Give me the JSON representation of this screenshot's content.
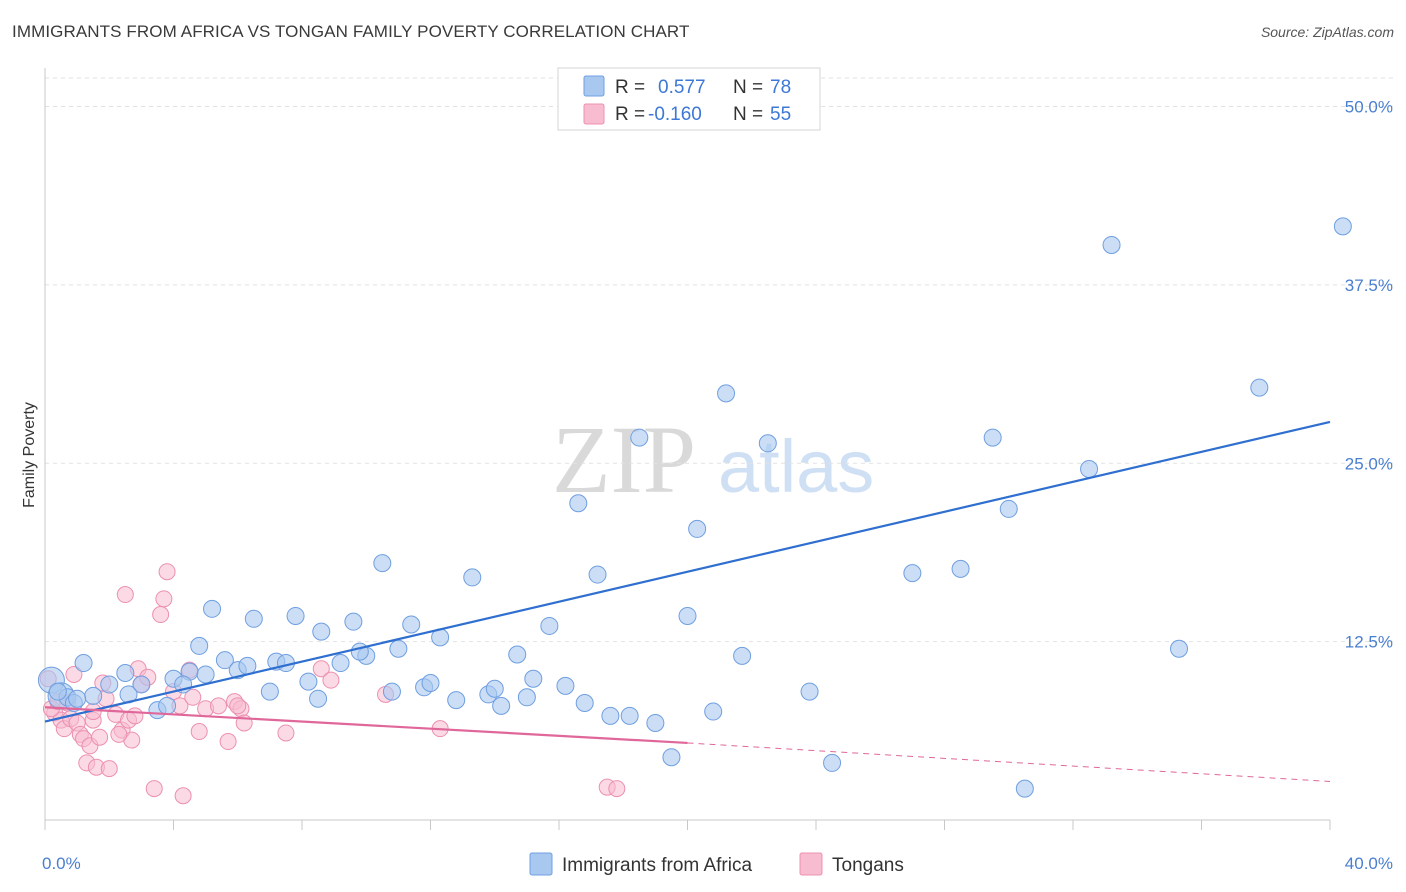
{
  "title": "IMMIGRANTS FROM AFRICA VS TONGAN FAMILY POVERTY CORRELATION CHART",
  "source": "Source: ZipAtlas.com",
  "watermark": {
    "left": "ZIP",
    "right": "atlas"
  },
  "colors": {
    "blue_fill": "#a9c8f0",
    "blue_stroke": "#6f9fe0",
    "blue_line": "#2f6fcf",
    "pink_fill": "#f7bcd0",
    "pink_stroke": "#ec90b0",
    "pink_line": "#e0679a",
    "axis_text": "#4a7fd0",
    "grid": "#e2e2e2"
  },
  "legend": {
    "rows": [
      {
        "r_label": "R =",
        "r_value": "0.577",
        "n_label": "N =",
        "n_value": "78"
      },
      {
        "r_label": "R =",
        "r_value": "-0.160",
        "n_label": "N =",
        "n_value": "55"
      }
    ]
  },
  "chart_data": {
    "type": "scatter",
    "title": "IMMIGRANTS FROM AFRICA VS TONGAN FAMILY POVERTY CORRELATION CHART",
    "xlabel": "",
    "ylabel": "Family Poverty",
    "xlim": [
      0,
      40
    ],
    "ylim": [
      0,
      52
    ],
    "x_ticks": [
      "0.0%",
      "40.0%"
    ],
    "y_ticks": [
      {
        "value": 12.5,
        "label": "12.5%"
      },
      {
        "value": 25.0,
        "label": "25.0%"
      },
      {
        "value": 37.5,
        "label": "37.5%"
      },
      {
        "value": 50.0,
        "label": "50.0%"
      }
    ],
    "series": [
      {
        "name": "Immigrants from Africa",
        "color": "#a9c8f0",
        "trend": {
          "x0": 0,
          "y0": 6.9,
          "x1": 40,
          "y1": 27.9
        },
        "points": [
          [
            0.2,
            9.8
          ],
          [
            0.5,
            8.7
          ],
          [
            0.7,
            8.6
          ],
          [
            0.9,
            8.2
          ],
          [
            1.2,
            11.0
          ],
          [
            1.5,
            8.7
          ],
          [
            2.0,
            9.5
          ],
          [
            2.5,
            10.3
          ],
          [
            3.0,
            9.5
          ],
          [
            3.5,
            7.7
          ],
          [
            4.0,
            9.9
          ],
          [
            4.5,
            10.4
          ],
          [
            4.8,
            12.2
          ],
          [
            5.2,
            14.8
          ],
          [
            5.6,
            11.2
          ],
          [
            6.0,
            10.5
          ],
          [
            6.5,
            14.1
          ],
          [
            7.0,
            9.0
          ],
          [
            7.2,
            11.1
          ],
          [
            7.8,
            14.3
          ],
          [
            8.2,
            9.7
          ],
          [
            8.6,
            13.2
          ],
          [
            9.2,
            11.0
          ],
          [
            9.6,
            13.9
          ],
          [
            10.0,
            11.5
          ],
          [
            10.5,
            18.0
          ],
          [
            11.0,
            12.0
          ],
          [
            11.4,
            13.7
          ],
          [
            11.8,
            9.3
          ],
          [
            12.3,
            12.8
          ],
          [
            12.8,
            8.4
          ],
          [
            13.3,
            17.0
          ],
          [
            13.8,
            8.8
          ],
          [
            14.2,
            8.0
          ],
          [
            14.7,
            11.6
          ],
          [
            15.2,
            9.9
          ],
          [
            15.7,
            13.6
          ],
          [
            16.2,
            9.4
          ],
          [
            16.6,
            22.2
          ],
          [
            17.2,
            17.2
          ],
          [
            17.6,
            7.3
          ],
          [
            18.2,
            7.3
          ],
          [
            18.5,
            26.8
          ],
          [
            19.0,
            6.8
          ],
          [
            19.5,
            4.4
          ],
          [
            20.0,
            14.3
          ],
          [
            20.3,
            20.4
          ],
          [
            20.8,
            7.6
          ],
          [
            21.2,
            29.9
          ],
          [
            21.7,
            11.5
          ],
          [
            22.5,
            26.4
          ],
          [
            23.8,
            9.0
          ],
          [
            24.5,
            4.0
          ],
          [
            27.0,
            17.3
          ],
          [
            28.5,
            17.6
          ],
          [
            29.5,
            26.8
          ],
          [
            30.0,
            21.8
          ],
          [
            30.5,
            2.2
          ],
          [
            32.5,
            24.6
          ],
          [
            33.2,
            40.3
          ],
          [
            35.3,
            12.0
          ],
          [
            37.8,
            30.3
          ],
          [
            40.4,
            41.6
          ],
          [
            0.4,
            9.0
          ],
          [
            1.0,
            8.5
          ],
          [
            2.6,
            8.8
          ],
          [
            3.8,
            8.0
          ],
          [
            4.3,
            9.5
          ],
          [
            5.0,
            10.2
          ],
          [
            6.3,
            10.8
          ],
          [
            7.5,
            11.0
          ],
          [
            8.5,
            8.5
          ],
          [
            9.8,
            11.8
          ],
          [
            10.8,
            9.0
          ],
          [
            12.0,
            9.6
          ],
          [
            14.0,
            9.2
          ],
          [
            15.0,
            8.6
          ],
          [
            16.8,
            8.2
          ]
        ]
      },
      {
        "name": "Tongans",
        "color": "#f7bcd0",
        "trend": {
          "x0": 0,
          "y0": 7.9,
          "x1": 20,
          "y1": 5.4,
          "x_ext": 40,
          "y_ext": 2.7
        },
        "points": [
          [
            0.1,
            9.9
          ],
          [
            0.3,
            7.5
          ],
          [
            0.5,
            7.0
          ],
          [
            0.6,
            6.4
          ],
          [
            0.7,
            8.2
          ],
          [
            0.8,
            7.1
          ],
          [
            0.9,
            10.2
          ],
          [
            1.0,
            6.8
          ],
          [
            1.1,
            6.0
          ],
          [
            1.2,
            5.7
          ],
          [
            1.3,
            4.0
          ],
          [
            1.4,
            5.2
          ],
          [
            1.5,
            7.0
          ],
          [
            1.6,
            3.7
          ],
          [
            1.7,
            5.8
          ],
          [
            1.8,
            9.6
          ],
          [
            1.9,
            8.5
          ],
          [
            2.0,
            3.6
          ],
          [
            2.2,
            7.4
          ],
          [
            2.4,
            6.3
          ],
          [
            2.5,
            15.8
          ],
          [
            2.6,
            7.0
          ],
          [
            2.7,
            5.6
          ],
          [
            2.9,
            10.6
          ],
          [
            3.0,
            9.5
          ],
          [
            3.2,
            10.0
          ],
          [
            3.4,
            2.2
          ],
          [
            3.6,
            14.4
          ],
          [
            3.7,
            15.5
          ],
          [
            3.8,
            17.4
          ],
          [
            4.0,
            9.0
          ],
          [
            4.2,
            8.0
          ],
          [
            4.3,
            1.7
          ],
          [
            4.5,
            10.5
          ],
          [
            4.8,
            6.2
          ],
          [
            5.0,
            7.8
          ],
          [
            5.4,
            8.0
          ],
          [
            5.7,
            5.5
          ],
          [
            5.9,
            8.3
          ],
          [
            6.1,
            7.8
          ],
          [
            6.2,
            6.8
          ],
          [
            7.5,
            6.1
          ],
          [
            8.6,
            10.6
          ],
          [
            8.9,
            9.8
          ],
          [
            10.6,
            8.8
          ],
          [
            12.3,
            6.4
          ],
          [
            17.5,
            2.3
          ],
          [
            17.8,
            2.2
          ],
          [
            0.2,
            7.8
          ],
          [
            0.4,
            8.3
          ],
          [
            1.5,
            7.6
          ],
          [
            2.3,
            6.0
          ],
          [
            2.8,
            7.3
          ],
          [
            4.6,
            8.6
          ],
          [
            6.0,
            8.0
          ]
        ]
      }
    ],
    "legend_position": "top-center and bottom"
  }
}
